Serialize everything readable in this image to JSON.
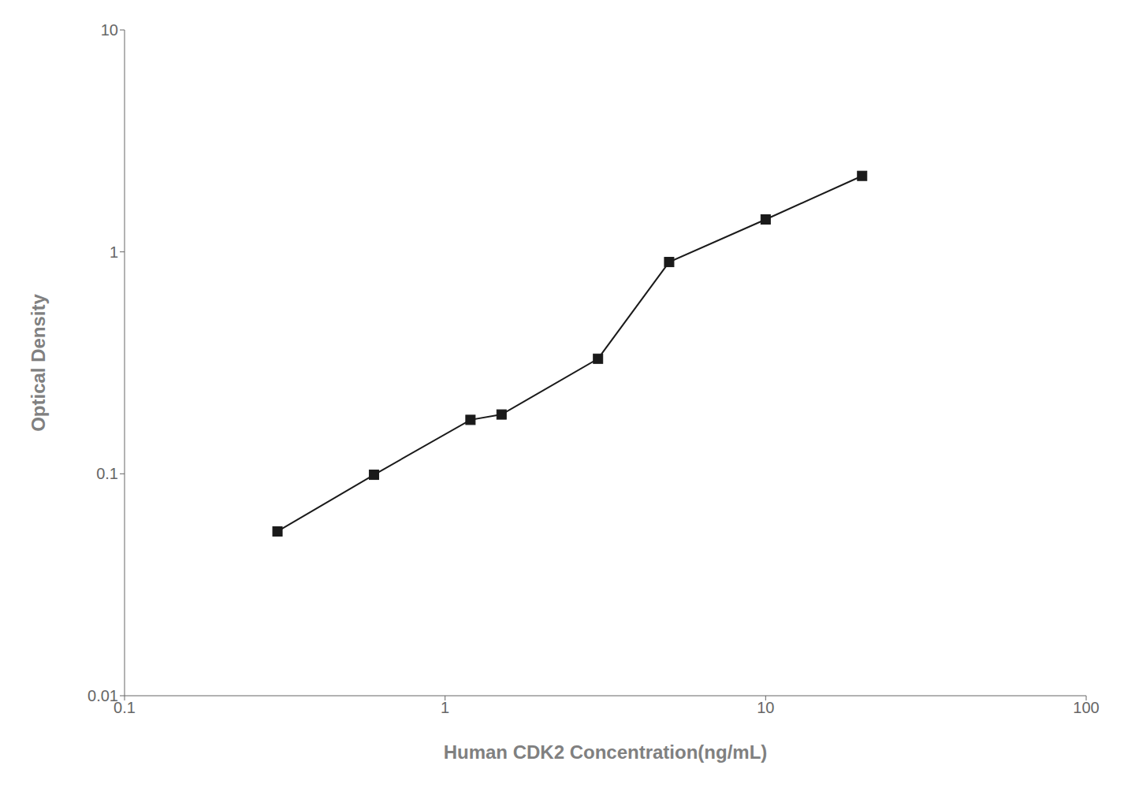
{
  "chart_data": {
    "type": "line",
    "x": [
      0.3,
      0.6,
      1.2,
      1.5,
      3.0,
      5.0,
      10.0,
      20.0
    ],
    "values": [
      0.055,
      0.099,
      0.175,
      0.185,
      0.33,
      0.9,
      1.4,
      2.2
    ],
    "xlabel": "Human CDK2 Concentration(ng/mL)",
    "ylabel": "Optical Density",
    "xlim": [
      0.1,
      100
    ],
    "ylim": [
      0.01,
      10
    ],
    "xticks": [
      0.1,
      1,
      10,
      100
    ],
    "yticks": [
      0.01,
      0.1,
      1,
      10
    ],
    "log": true,
    "grid": false,
    "color": "#1a1a1a",
    "marker": "square"
  }
}
